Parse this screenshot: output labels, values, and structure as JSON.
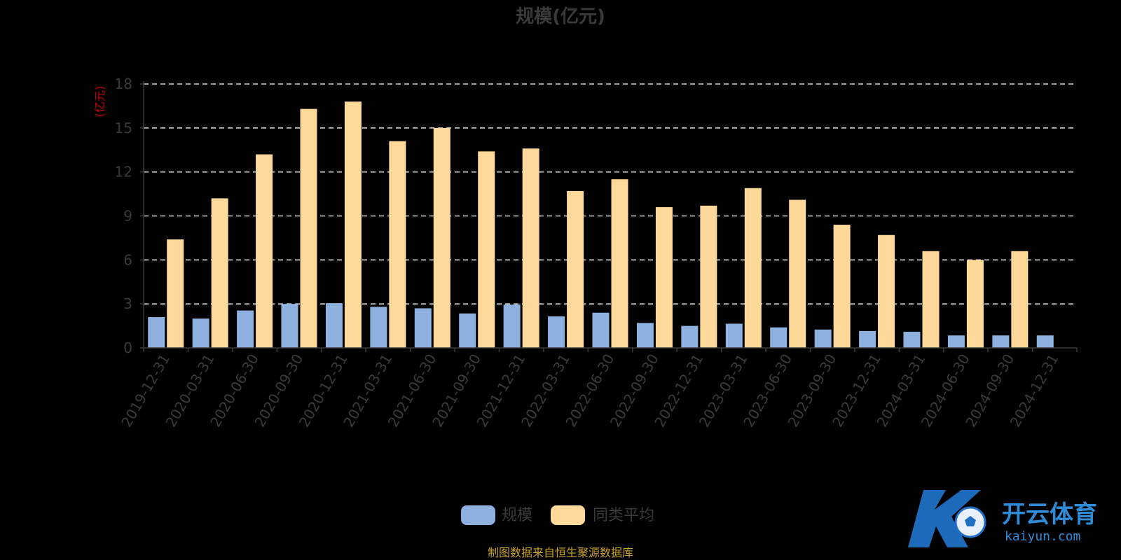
{
  "chart_data": {
    "type": "bar",
    "title": "规模(亿元)",
    "y_unit": "(亿元)",
    "categories": [
      "2019-12-31",
      "2020-03-31",
      "2020-06-30",
      "2020-09-30",
      "2020-12-31",
      "2021-03-31",
      "2021-06-30",
      "2021-09-30",
      "2021-12-31",
      "2022-03-31",
      "2022-06-30",
      "2022-09-30",
      "2022-12-31",
      "2023-03-31",
      "2023-06-30",
      "2023-09-30",
      "2023-12-31",
      "2024-03-31",
      "2024-06-30",
      "2024-09-30",
      "2024-12-31"
    ],
    "series": [
      {
        "name": "规模",
        "color": "#8eb1e0",
        "values": [
          2.1,
          2.0,
          2.55,
          3.0,
          3.05,
          2.8,
          2.7,
          2.35,
          2.95,
          2.15,
          2.4,
          1.7,
          1.5,
          1.65,
          1.4,
          1.25,
          1.15,
          1.1,
          0.85,
          0.85,
          0.85
        ]
      },
      {
        "name": "同类平均",
        "color": "#ffd999",
        "values": [
          7.4,
          10.2,
          13.2,
          16.3,
          16.8,
          14.1,
          15.0,
          13.4,
          13.6,
          10.7,
          11.5,
          9.6,
          9.7,
          10.9,
          10.1,
          8.4,
          7.7,
          6.6,
          6.0,
          6.6,
          null
        ]
      }
    ],
    "ylim": [
      0,
      18
    ],
    "yticks": [
      0,
      3,
      6,
      9,
      12,
      15,
      18
    ],
    "grid": true,
    "legend_position": "bottom-center"
  },
  "source_note": "制图数据来自恒生聚源数据库",
  "watermark": {
    "brand": "开云体育",
    "domain": "kaiyun.com"
  }
}
